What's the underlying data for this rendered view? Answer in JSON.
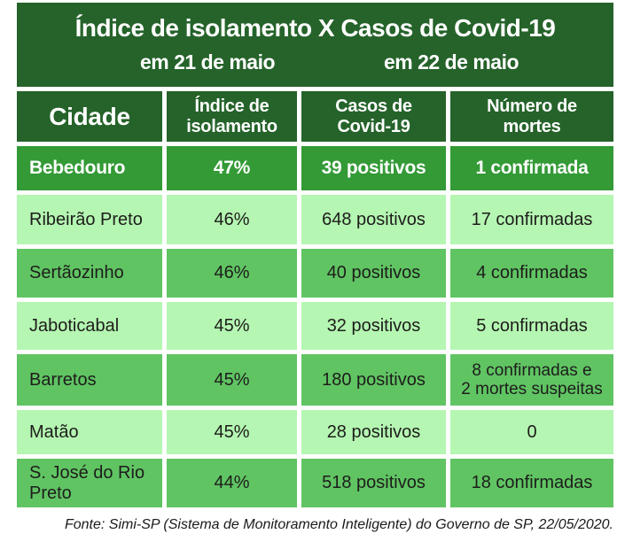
{
  "banner": {
    "title": "Índice de isolamento X Casos de Covid-19",
    "subtitle_left": "em 21 de maio",
    "subtitle_right": "em 22 de maio"
  },
  "table": {
    "headers": [
      "Cidade",
      "Índice de\nisolamento",
      "Casos de\nCovid-19",
      "Número de\nmortes"
    ],
    "rows": [
      {
        "city": "Bebedouro",
        "isolation": "47%",
        "cases": "39 positivos",
        "deaths": "1 confirmada"
      },
      {
        "city": "Ribeirão Preto",
        "isolation": "46%",
        "cases": "648 positivos",
        "deaths": "17 confirmadas"
      },
      {
        "city": "Sertãozinho",
        "isolation": "46%",
        "cases": "40 positivos",
        "deaths": "4 confirmadas"
      },
      {
        "city": "Jaboticabal",
        "isolation": "45%",
        "cases": "32 positivos",
        "deaths": "5 confirmadas"
      },
      {
        "city": "Barretos",
        "isolation": "45%",
        "cases": "180 positivos",
        "deaths": "8 confirmadas e\n2 mortes suspeitas"
      },
      {
        "city": "Matão",
        "isolation": "45%",
        "cases": "28 positivos",
        "deaths": "0"
      },
      {
        "city": "S. José do Rio Preto",
        "isolation": "44%",
        "cases": "518 positivos",
        "deaths": "18 confirmadas"
      }
    ]
  },
  "footer": {
    "source": "Fonte: Simi-SP (Sistema de Monitoramento Inteligente) do Governo de SP, 22/05/2020."
  },
  "colors": {
    "header_green": "#25632a",
    "highlight_row_green": "#339a36",
    "medium_row_green": "#60c463",
    "light_row_green": "#b5f6b2",
    "text_dark": "#1d1d1b",
    "text_white": "#ffffff"
  },
  "chart_data": {
    "type": "table",
    "title": "Índice de isolamento X Casos de Covid-19",
    "subtitles": [
      "em 21 de maio",
      "em 22 de maio"
    ],
    "columns": [
      "Cidade",
      "Índice de isolamento",
      "Casos de Covid-19",
      "Número de mortes"
    ],
    "rows": [
      [
        "Bebedouro",
        "47%",
        "39 positivos",
        "1 confirmada"
      ],
      [
        "Ribeirão Preto",
        "46%",
        "648 positivos",
        "17 confirmadas"
      ],
      [
        "Sertãozinho",
        "46%",
        "40 positivos",
        "4 confirmadas"
      ],
      [
        "Jaboticabal",
        "45%",
        "32 positivos",
        "5 confirmadas"
      ],
      [
        "Barretos",
        "45%",
        "180 positivos",
        "8 confirmadas e 2 mortes suspeitas"
      ],
      [
        "Matão",
        "45%",
        "28 positivos",
        "0"
      ],
      [
        "S. José do Rio Preto",
        "44%",
        "518 positivos",
        "18 confirmadas"
      ]
    ],
    "isolation_values_pct": [
      47,
      46,
      46,
      45,
      45,
      45,
      44
    ],
    "positive_cases": [
      39,
      648,
      40,
      32,
      180,
      28,
      518
    ],
    "confirmed_deaths": [
      1,
      17,
      4,
      5,
      8,
      0,
      18
    ],
    "source": "Fonte: Simi-SP (Sistema de Monitoramento Inteligente) do Governo de SP, 22/05/2020."
  }
}
